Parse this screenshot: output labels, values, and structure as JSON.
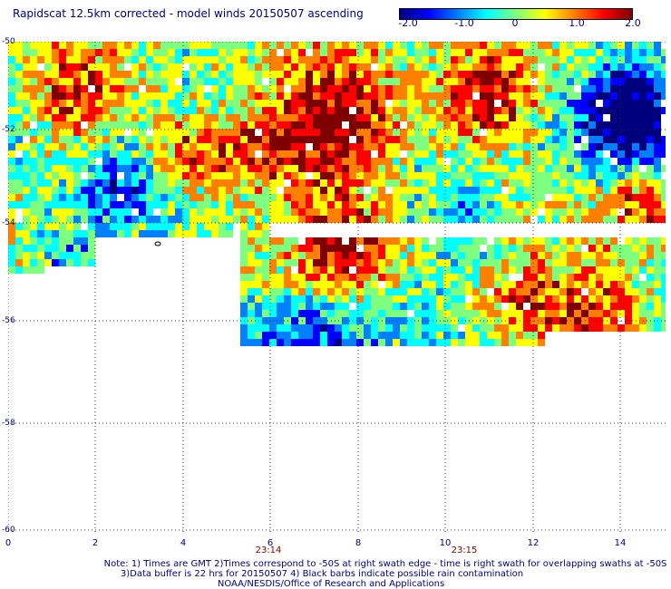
{
  "title": "Rapidscat 12.5km corrected - model winds 20150507 ascending",
  "colorbar": {
    "colors": [
      "#00007f",
      "#0000ff",
      "#007fff",
      "#00ffff",
      "#7fff7f",
      "#ffff00",
      "#ff7f00",
      "#ff0000",
      "#7f0000"
    ],
    "labels": [
      "-2.0",
      "-1.0",
      "0",
      "1.0",
      "2.0"
    ]
  },
  "axes": {
    "x_ticks": [
      "0",
      "2",
      "4",
      "6",
      "8",
      "10",
      "12",
      "14"
    ],
    "y_ticks": [
      "-50",
      "-52",
      "-54",
      "-56",
      "-58",
      "-60"
    ],
    "time_labels": [
      "23:14",
      "23:15"
    ]
  },
  "chart_data": {
    "type": "heatmap",
    "xlim": [
      0,
      15
    ],
    "ylim": [
      -60,
      -50
    ],
    "value_range": [
      -2.0,
      2.0
    ],
    "grid": true
  },
  "notes": {
    "line1": "Note: 1) Times are GMT 2)Times correspond to -50S at right swath edge - time is right swath for overlapping swaths at -50S",
    "line2": "3)Data buffer is 22 hrs for 20150507 4) Black barbs indicate possible rain contamination",
    "line3": "NOAA/NESDIS/Office of Research and Applications"
  }
}
